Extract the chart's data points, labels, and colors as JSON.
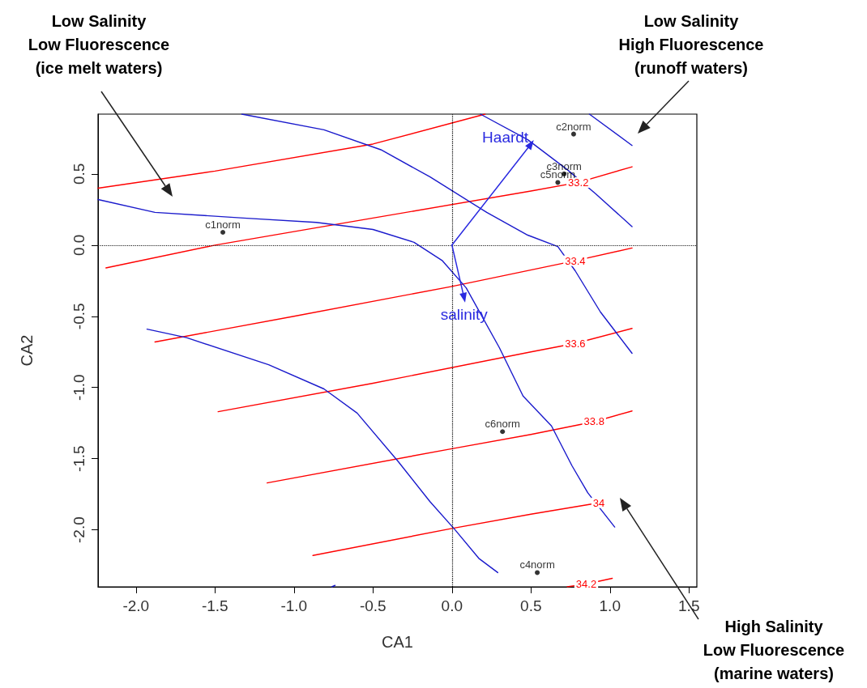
{
  "chart_data": {
    "type": "line",
    "xlabel": "CA1",
    "ylabel": "CA2",
    "xlim": [
      -2.24,
      1.55
    ],
    "ylim": [
      -2.4,
      0.92
    ],
    "xticks": [
      {
        "value": -2,
        "label": "-2.0"
      },
      -1.5,
      {
        "value": -1,
        "label": "-1.0"
      },
      -0.5,
      {
        "value": 0,
        "label": "0.0"
      },
      0.5,
      {
        "value": 1,
        "label": "1.0"
      },
      1.5
    ],
    "yticks": [
      {
        "value": -2,
        "label": "-2.0"
      },
      -1.5,
      {
        "value": -1,
        "label": "-1.0"
      },
      -0.5,
      {
        "value": 0,
        "label": "0.0"
      },
      0.5
    ],
    "grid": false,
    "legend": false,
    "marker": "none",
    "ref_lines": [
      {
        "axis": "x",
        "value": 0,
        "color": "#000000",
        "line_style": "dotted"
      },
      {
        "axis": "y",
        "value": 0,
        "color": "#1a1a1a",
        "line_style": "dotted"
      }
    ],
    "series": [
      {
        "color": "#ff0000",
        "x": [
          -2.24,
          -1.5,
          -0.5,
          0.21
        ],
        "values": [
          0.4,
          0.52,
          0.71,
          0.92
        ]
      },
      {
        "name": "33.2",
        "color": "#ff0000",
        "x": [
          -2.19,
          -1.5,
          -0.5,
          0.5,
          0.8,
          1.14
        ],
        "values": [
          -0.16,
          0.0,
          0.19,
          0.38,
          0.44,
          0.55
        ]
      },
      {
        "name": "33.4",
        "color": "#ff0000",
        "x": [
          -1.88,
          -1.0,
          0.0,
          0.78,
          1.14
        ],
        "values": [
          -0.68,
          -0.5,
          -0.29,
          -0.11,
          -0.02
        ]
      },
      {
        "name": "33.6",
        "color": "#ff0000",
        "x": [
          -1.48,
          -0.5,
          0.5,
          0.78,
          1.14
        ],
        "values": [
          -1.17,
          -0.97,
          -0.75,
          -0.69,
          -0.585
        ]
      },
      {
        "name": "33.8",
        "color": "#ff0000",
        "x": [
          -1.17,
          0.0,
          0.5,
          0.9,
          1.14
        ],
        "values": [
          -1.67,
          -1.43,
          -1.33,
          -1.24,
          -1.165
        ]
      },
      {
        "name": "34",
        "color": "#ff0000",
        "x": [
          -0.88,
          0.0,
          0.5,
          0.93,
          0.97
        ],
        "values": [
          -2.18,
          -1.99,
          -1.89,
          -1.81,
          -1.8
        ]
      },
      {
        "name": "34.2",
        "color": "#ff0000",
        "x": [
          0.73,
          0.85,
          1.015
        ],
        "values": [
          -2.4,
          -2.38,
          -2.34
        ]
      },
      {
        "color": "#1a1acc",
        "x": [
          -1.33,
          -0.81,
          -0.45,
          -0.14,
          0.22,
          0.48,
          0.67,
          0.78,
          0.94,
          1.14
        ],
        "values": [
          0.92,
          0.81,
          0.67,
          0.48,
          0.23,
          0.07,
          -0.01,
          -0.18,
          -0.47,
          -0.76
        ]
      },
      {
        "color": "#1a1acc",
        "x": [
          -2.24,
          -1.88,
          -1.32,
          -0.86,
          -0.5,
          -0.24,
          -0.06,
          0.09,
          0.3,
          0.45,
          0.63,
          0.76,
          0.86,
          1.03
        ],
        "values": [
          0.32,
          0.23,
          0.19,
          0.16,
          0.11,
          0.02,
          -0.11,
          -0.3,
          -0.72,
          -1.06,
          -1.27,
          -1.55,
          -1.74,
          -1.98
        ]
      },
      {
        "color": "#1a1acc",
        "x": [
          -1.93,
          -1.68,
          -1.16,
          -0.81,
          -0.6,
          -0.34,
          -0.14,
          0.02,
          0.17,
          0.29
        ],
        "values": [
          -0.59,
          -0.65,
          -0.84,
          -1.01,
          -1.18,
          -1.52,
          -1.8,
          -2.0,
          -2.2,
          -2.3
        ]
      },
      {
        "color": "#1a1acc",
        "x": [
          0.87,
          1.14
        ],
        "values": [
          0.92,
          0.7
        ]
      },
      {
        "color": "#1a1acc",
        "x": [
          0.18,
          0.48,
          0.73,
          0.91,
          1.14
        ],
        "values": [
          0.92,
          0.74,
          0.53,
          0.36,
          0.13
        ]
      },
      {
        "color": "#1a1acc",
        "x": [
          -0.76,
          -0.74
        ],
        "values": [
          -2.4,
          -2.39
        ]
      },
      {
        "name": "Haardt",
        "color": "#2a2ae0",
        "marker": "triangle",
        "x": [
          0,
          0.5
        ],
        "values": [
          0,
          0.71
        ]
      },
      {
        "name": "salinity",
        "color": "#2a2ae0",
        "marker": "triangle",
        "x": [
          0,
          0.077
        ],
        "values": [
          0,
          -0.37
        ]
      },
      {
        "type": "scatter",
        "color": "#000000",
        "x": [
          -1.45,
          0.77,
          0.71,
          0.54,
          0.67,
          0.32
        ],
        "values": [
          0.09,
          0.78,
          0.5,
          -2.3,
          0.44,
          -1.31
        ],
        "value_labels": [
          "c1norm",
          "c2norm",
          "c3norm",
          "c4norm",
          "c5norm",
          "c6norm"
        ]
      }
    ],
    "annotations": [
      "Low Salinity\nLow Fluorescence\n(ice melt waters)",
      "Low Salinity\nHigh Fluorescence\n(runoff waters)",
      "High Salinity\nLow Fluorescence\n(marine waters)"
    ]
  }
}
